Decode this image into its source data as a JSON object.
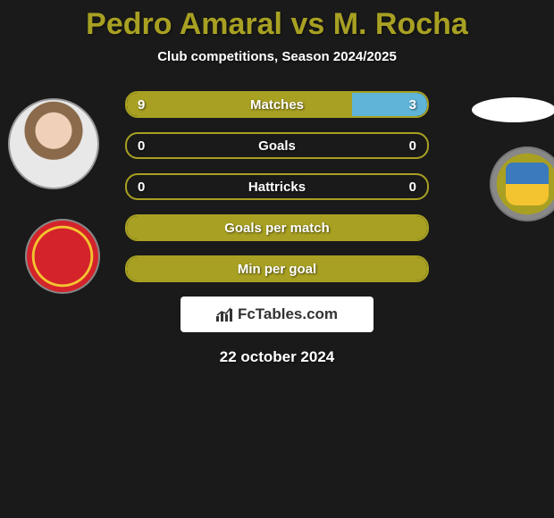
{
  "title": "Pedro Amaral vs M. Rocha",
  "subtitle": "Club competitions, Season 2024/2025",
  "date": "22 october 2024",
  "watermark": "FcTables.com",
  "colors": {
    "accent": "#a8a022",
    "player2_fill": "#5fb4d8",
    "background": "#1a1a1a",
    "text": "#ffffff"
  },
  "stats": [
    {
      "label": "Matches",
      "left_val": "9",
      "right_val": "3",
      "left_pct": 75,
      "right_pct": 25
    },
    {
      "label": "Goals",
      "left_val": "0",
      "right_val": "0",
      "left_pct": 0,
      "right_pct": 0
    },
    {
      "label": "Hattricks",
      "left_val": "0",
      "right_val": "0",
      "left_pct": 0,
      "right_pct": 0
    },
    {
      "label": "Goals per match",
      "left_val": "",
      "right_val": "",
      "left_pct": 100,
      "right_pct": 0,
      "single_fill": true
    },
    {
      "label": "Min per goal",
      "left_val": "",
      "right_val": "",
      "left_pct": 100,
      "right_pct": 0,
      "single_fill": true
    }
  ]
}
